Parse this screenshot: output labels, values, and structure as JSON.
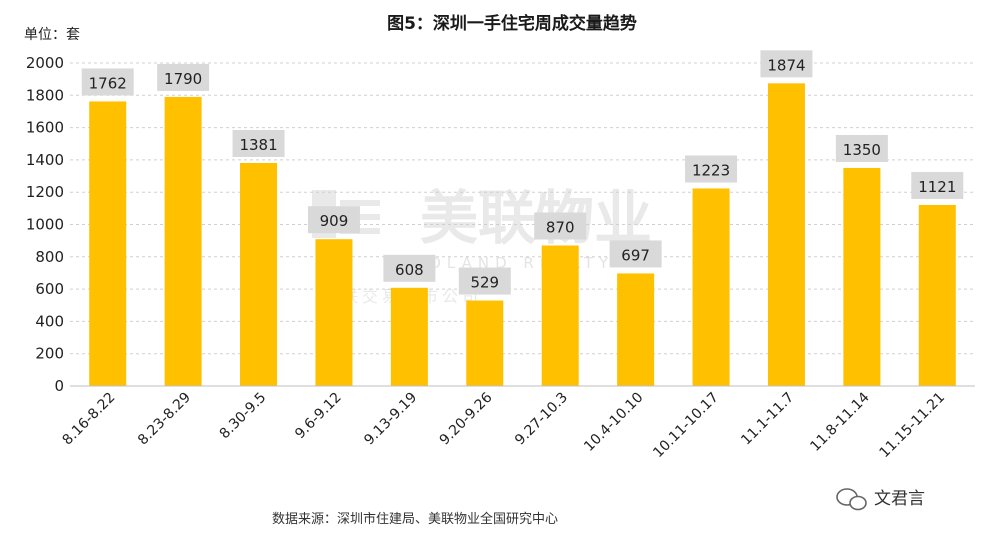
{
  "chart_data": {
    "type": "bar",
    "title": "图5：深圳一手住宅周成交量趋势",
    "unit_label": "单位：套",
    "categories": [
      "8.16-8.22",
      "8.23-8.29",
      "8.30-9.5",
      "9.6-9.12",
      "9.13-9.19",
      "9.20-9.26",
      "9.27-10.3",
      "10.4-10.10",
      "10.11-10.17",
      "11.1-11.7",
      "11.8-11.14",
      "11.15-11.21"
    ],
    "values": [
      1762,
      1790,
      1381,
      909,
      608,
      529,
      870,
      697,
      1223,
      1874,
      1350,
      1121
    ],
    "yticks": [
      "0",
      "200",
      "400",
      "600",
      "800",
      "1000",
      "1200",
      "1400",
      "1600",
      "1800",
      "2000"
    ],
    "ylim": [
      0,
      2000
    ],
    "grid": true,
    "bar_color": "#FFC000",
    "label_bg_color": "#D9D9D9",
    "grid_color": "#D0D0D0"
  },
  "source": "数据来源：深圳市住建局、美联物业全国研究中心",
  "watermark": {
    "main": "美联物业",
    "sub": "MIDLAND REALTY",
    "line": "美联交易上市公司"
  },
  "brand": "文君言"
}
